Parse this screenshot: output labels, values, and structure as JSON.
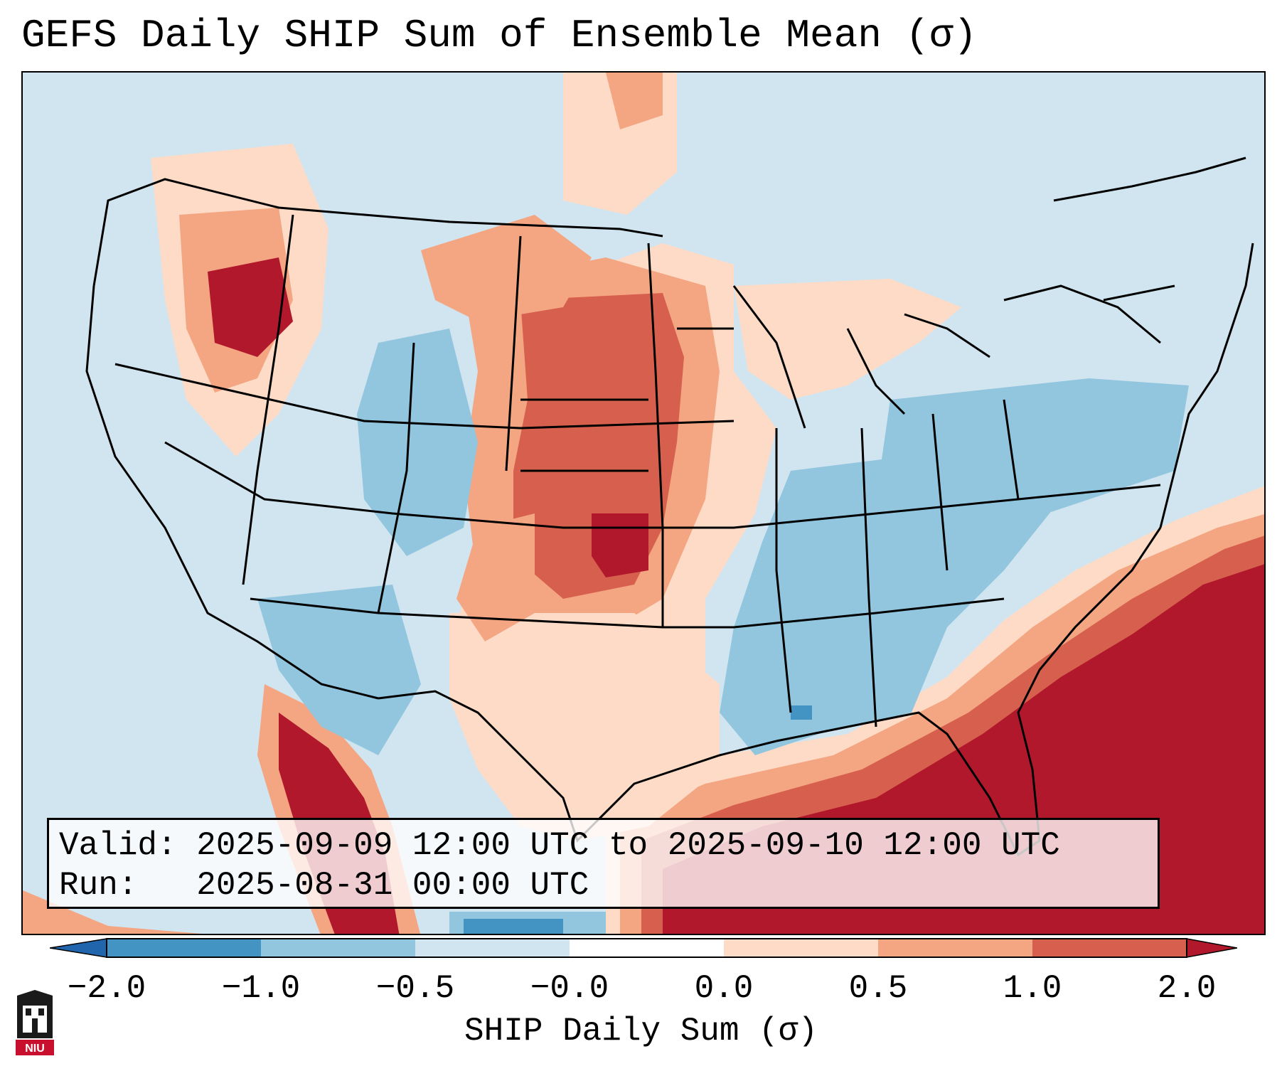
{
  "title": "GEFS Daily SHIP Sum of Ensemble Mean (σ)",
  "info": {
    "valid_label": "Valid:",
    "valid_value": "2025-09-09 12:00 UTC to 2025-09-10 12:00 UTC",
    "run_label": "Run:",
    "run_value": "2025-08-31 00:00 UTC"
  },
  "colorbar": {
    "label": "SHIP Daily Sum (σ)",
    "ticks": [
      "−2.0",
      "−1.0",
      "−0.5",
      "−0.0",
      "0.0",
      "0.5",
      "1.0",
      "2.0"
    ],
    "bins": [
      {
        "range": "< -2.0",
        "color": "#2166ac"
      },
      {
        "range": "-2.0 to -1.0",
        "color": "#4393c3"
      },
      {
        "range": "-1.0 to -0.5",
        "color": "#92c5de"
      },
      {
        "range": "-0.5 to -0.0",
        "color": "#d1e5f0"
      },
      {
        "range": "-0.0 to 0.0",
        "color": "#ffffff"
      },
      {
        "range": "0.0 to 0.5",
        "color": "#fddbc7"
      },
      {
        "range": "0.5 to 1.0",
        "color": "#f4a582"
      },
      {
        "range": "1.0 to 2.0",
        "color": "#d6604d"
      },
      {
        "range": "> 2.0",
        "color": "#b2182b"
      }
    ]
  },
  "logo": {
    "text": "NIU",
    "icon": "niu-logo-icon"
  }
}
